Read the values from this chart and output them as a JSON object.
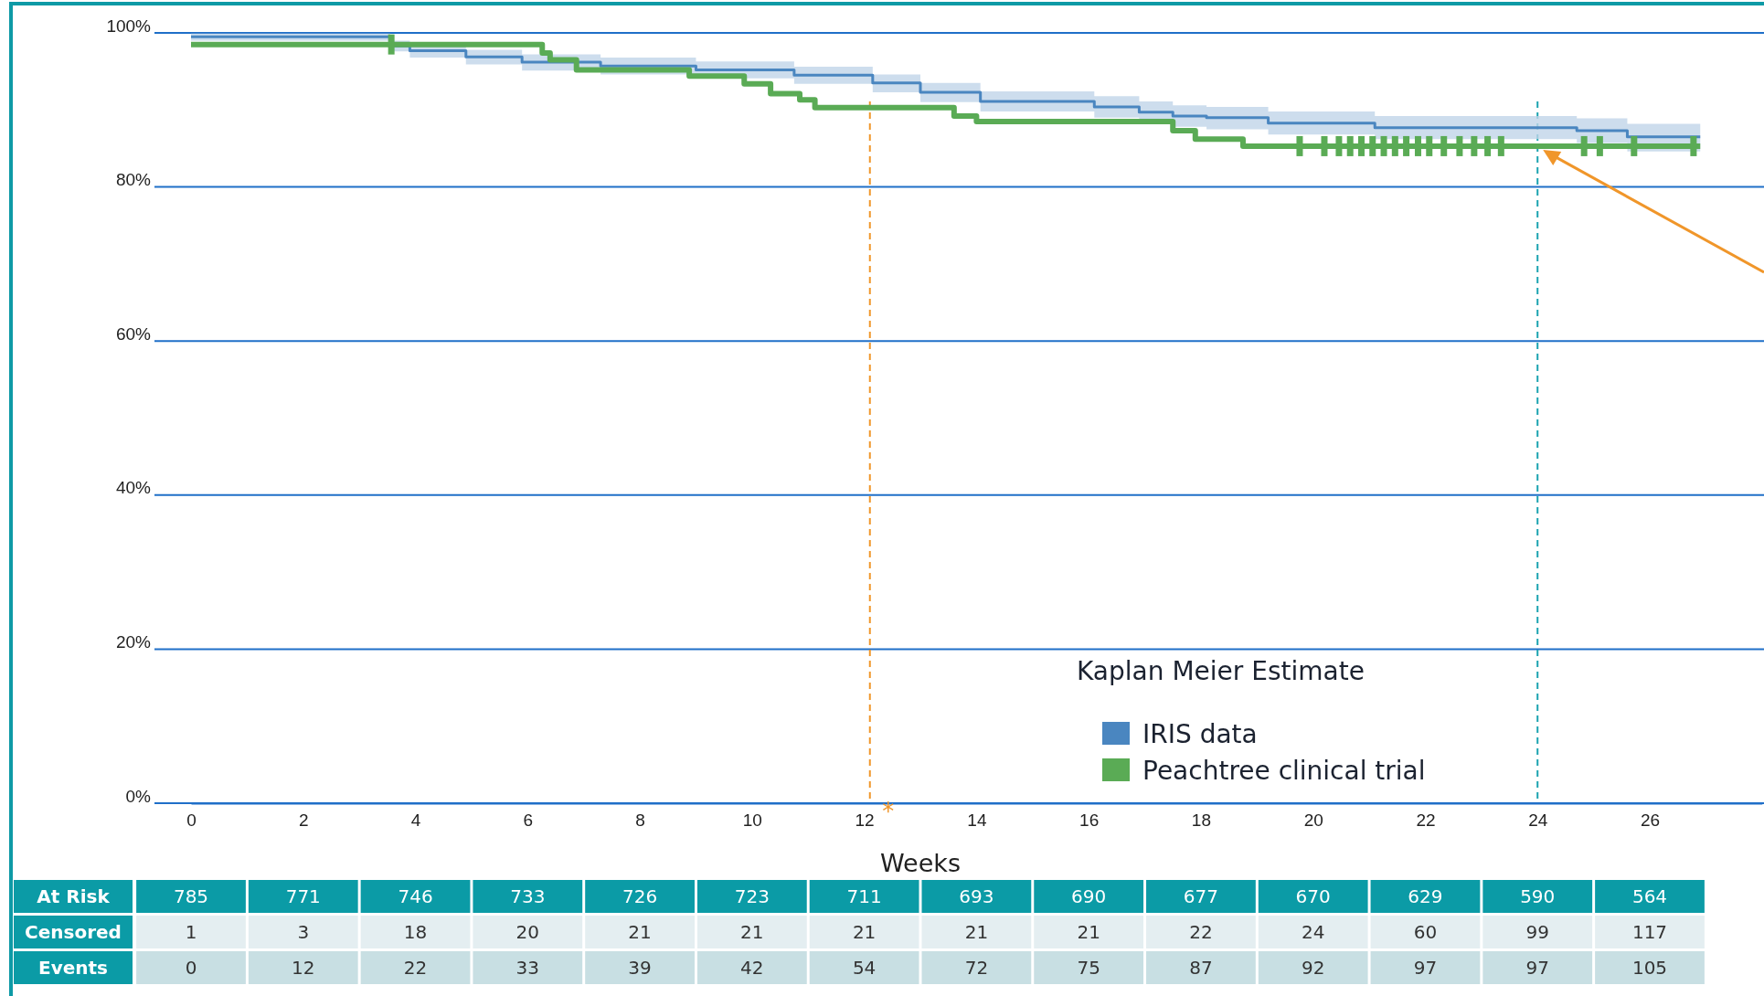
{
  "chart_data": [
    {
      "type": "step",
      "xlabel": "Weeks",
      "legend_title": "Kaplan Meier Estimate",
      "legend": "bottom right",
      "grid": "y",
      "xlim": [
        0,
        28
      ],
      "xticks": [
        0,
        2,
        4,
        6,
        8,
        10,
        12,
        14,
        16,
        18,
        20,
        22,
        24,
        26
      ],
      "ylim": [
        0,
        100
      ],
      "yticks": [
        {
          "value": 0,
          "label": "0%"
        },
        {
          "value": 20,
          "label": "20%"
        },
        {
          "value": 40,
          "label": "40%"
        },
        {
          "value": 60,
          "label": "60%"
        },
        {
          "value": 80,
          "label": "80%"
        },
        {
          "value": 100,
          "label": "100%"
        }
      ],
      "series": [
        {
          "name": "IRIS data",
          "color": "#4a86c0",
          "x": [
            0,
            3.55,
            3.9,
            4.9,
            5.9,
            7.3,
            9.0,
            10.75,
            12.15,
            13.0,
            14.07,
            16.1,
            16.9,
            17.5,
            18.1,
            19.2,
            21.1,
            24.7,
            25.6,
            26.9
          ],
          "values": [
            99.5,
            98.3,
            97.7,
            96.9,
            96.2,
            95.7,
            95.2,
            94.5,
            93.5,
            92.3,
            91.1,
            90.4,
            89.7,
            89.2,
            89.0,
            88.3,
            87.7,
            87.3,
            86.5,
            86.5
          ],
          "upper": [
            99.9,
            99.0,
            98.5,
            97.8,
            97.2,
            96.8,
            96.3,
            95.6,
            94.6,
            93.5,
            92.4,
            91.8,
            91.1,
            90.6,
            90.4,
            89.8,
            89.2,
            88.9,
            88.2,
            88.2
          ],
          "lower": [
            99.0,
            97.6,
            96.8,
            95.9,
            95.1,
            94.6,
            94.1,
            93.4,
            92.3,
            91.0,
            89.8,
            89.0,
            88.3,
            87.8,
            87.5,
            86.8,
            86.2,
            85.7,
            84.6,
            84.6
          ]
        },
        {
          "name": "Peachtree clinical trial",
          "color": "#5aab55",
          "x": [
            0,
            6.26,
            6.4,
            6.87,
            8.88,
            9.86,
            10.33,
            10.85,
            11.12,
            13.6,
            14.0,
            17.5,
            17.9,
            18.75,
            26.9
          ],
          "values": [
            98.5,
            97.4,
            96.5,
            95.2,
            94.4,
            93.4,
            92.1,
            91.3,
            90.3,
            89.2,
            88.5,
            87.3,
            86.2,
            85.3,
            85.3
          ]
        },
        {
          "type": "scatter",
          "color": "#5aab55",
          "x": [
            3.57,
            19.76,
            20.2,
            20.46,
            20.66,
            20.86,
            21.06,
            21.26,
            21.46,
            21.66,
            21.87,
            22.07,
            22.33,
            22.61,
            22.87,
            23.11,
            23.35,
            24.83,
            25.11,
            25.72,
            26.78
          ],
          "values": [
            98.5,
            85.3,
            85.3,
            85.3,
            85.3,
            85.3,
            85.3,
            85.3,
            85.3,
            85.3,
            85.3,
            85.3,
            85.3,
            85.3,
            85.3,
            85.3,
            85.3,
            85.3,
            85.3,
            85.3,
            85.3
          ]
        }
      ],
      "ref_lines": [
        {
          "axis": "x",
          "value": 12.1,
          "color": "#f0962a",
          "line_style": "dashed"
        },
        {
          "axis": "x",
          "value": 24,
          "color": "#1ba3b0",
          "line_style": "dashed"
        }
      ],
      "annotations": [
        "*"
      ]
    },
    {
      "type": "heatmap",
      "data_labels": true,
      "categories": [
        null,
        null,
        null,
        null,
        null,
        null,
        null,
        null,
        null,
        null,
        null,
        null,
        null,
        null
      ],
      "y_categories": [
        "At Risk",
        "Censored",
        "Events"
      ],
      "colors": [
        "#0b9ba6",
        "#e4eef1",
        "#c8dfe3"
      ],
      "cells": [
        [
          785,
          771,
          746,
          733,
          726,
          723,
          711,
          693,
          690,
          677,
          670,
          629,
          590,
          564
        ],
        [
          1,
          3,
          18,
          20,
          21,
          21,
          21,
          21,
          21,
          22,
          24,
          60,
          99,
          117
        ],
        [
          0,
          12,
          22,
          33,
          39,
          42,
          54,
          72,
          75,
          87,
          92,
          97,
          97,
          105
        ]
      ]
    }
  ]
}
